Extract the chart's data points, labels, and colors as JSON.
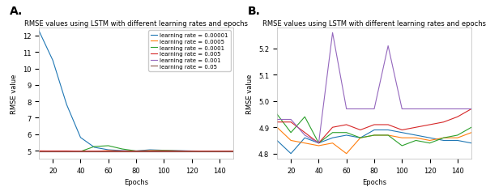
{
  "title": "RMSE values using LSTM with different learning rates and epochs",
  "xlabel": "Epochs",
  "ylabel": "RMSE value",
  "epochs": [
    10,
    20,
    30,
    40,
    50,
    60,
    70,
    80,
    90,
    100,
    110,
    120,
    130,
    140,
    150
  ],
  "series": {
    "learning rate = 0.00001": {
      "color": "#1f77b4",
      "data_A": [
        12.3,
        10.5,
        7.8,
        5.8,
        5.2,
        5.05,
        5.0,
        4.98,
        5.05,
        5.02,
        5.0,
        4.98,
        4.97,
        4.97,
        4.97
      ],
      "data_B": [
        4.85,
        4.8,
        4.86,
        4.84,
        4.86,
        4.87,
        4.86,
        4.89,
        4.89,
        4.88,
        4.87,
        4.86,
        4.85,
        4.85,
        4.84
      ]
    },
    "learning rate = 0.0005": {
      "color": "#ff7f0e",
      "data_A": [
        4.98,
        4.97,
        4.96,
        4.95,
        4.95,
        5.0,
        4.97,
        4.97,
        5.0,
        5.0,
        4.98,
        4.97,
        4.97,
        4.97,
        4.97
      ],
      "data_B": [
        4.9,
        4.85,
        4.84,
        4.83,
        4.84,
        4.8,
        4.86,
        4.87,
        4.87,
        4.86,
        4.86,
        4.85,
        4.86,
        4.86,
        4.88
      ]
    },
    "learning rate = 0.0001": {
      "color": "#2ca02c",
      "data_A": [
        4.97,
        4.96,
        4.96,
        4.95,
        5.25,
        5.3,
        5.1,
        4.98,
        4.98,
        5.0,
        4.98,
        4.97,
        4.97,
        4.97,
        4.97
      ],
      "data_B": [
        4.95,
        4.88,
        4.94,
        4.84,
        4.88,
        4.88,
        4.86,
        4.87,
        4.87,
        4.83,
        4.85,
        4.84,
        4.86,
        4.87,
        4.9
      ]
    },
    "learning rate = 0.005": {
      "color": "#d62728",
      "data_A": [
        4.98,
        4.98,
        4.98,
        4.97,
        4.97,
        4.97,
        4.97,
        4.97,
        4.97,
        4.97,
        4.97,
        4.97,
        4.97,
        4.97,
        4.97
      ],
      "data_B": [
        4.92,
        4.92,
        4.88,
        4.84,
        4.9,
        4.91,
        4.89,
        4.91,
        4.91,
        4.89,
        4.9,
        4.91,
        4.92,
        4.94,
        4.97
      ]
    },
    "learning rate = 0.001": {
      "color": "#9467bd",
      "data_A": [
        4.97,
        4.97,
        4.97,
        4.97,
        4.97,
        4.97,
        4.97,
        4.97,
        4.97,
        4.97,
        4.97,
        4.97,
        4.97,
        4.97,
        4.97
      ],
      "data_B": [
        4.93,
        4.93,
        4.87,
        4.84,
        5.26,
        4.97,
        4.97,
        4.97,
        5.21,
        4.97,
        4.97,
        4.97,
        4.97,
        4.97,
        4.97
      ]
    },
    "learning rate = 0.05": {
      "color": "#8c564b",
      "data_A": [
        4.97,
        4.97,
        4.97,
        4.97,
        4.97,
        4.97,
        4.97,
        4.97,
        4.97,
        4.97,
        4.97,
        4.97,
        4.97,
        4.97,
        4.97
      ],
      "data_B": null
    }
  },
  "ylim_A": [
    4.5,
    12.5
  ],
  "ylim_B": [
    4.78,
    5.28
  ],
  "yticks_A": [
    5,
    6,
    7,
    8,
    9,
    10,
    11,
    12
  ],
  "yticks_B": [
    4.8,
    4.9,
    5.0,
    5.1,
    5.2
  ],
  "xticks": [
    20,
    40,
    60,
    80,
    100,
    120,
    140
  ],
  "bg_color": "#ffffff",
  "fig_facecolor": "#ffffff",
  "label_fontsize": 10,
  "title_fontsize": 6,
  "tick_fontsize": 6,
  "axis_label_fontsize": 6,
  "legend_fontsize": 5
}
